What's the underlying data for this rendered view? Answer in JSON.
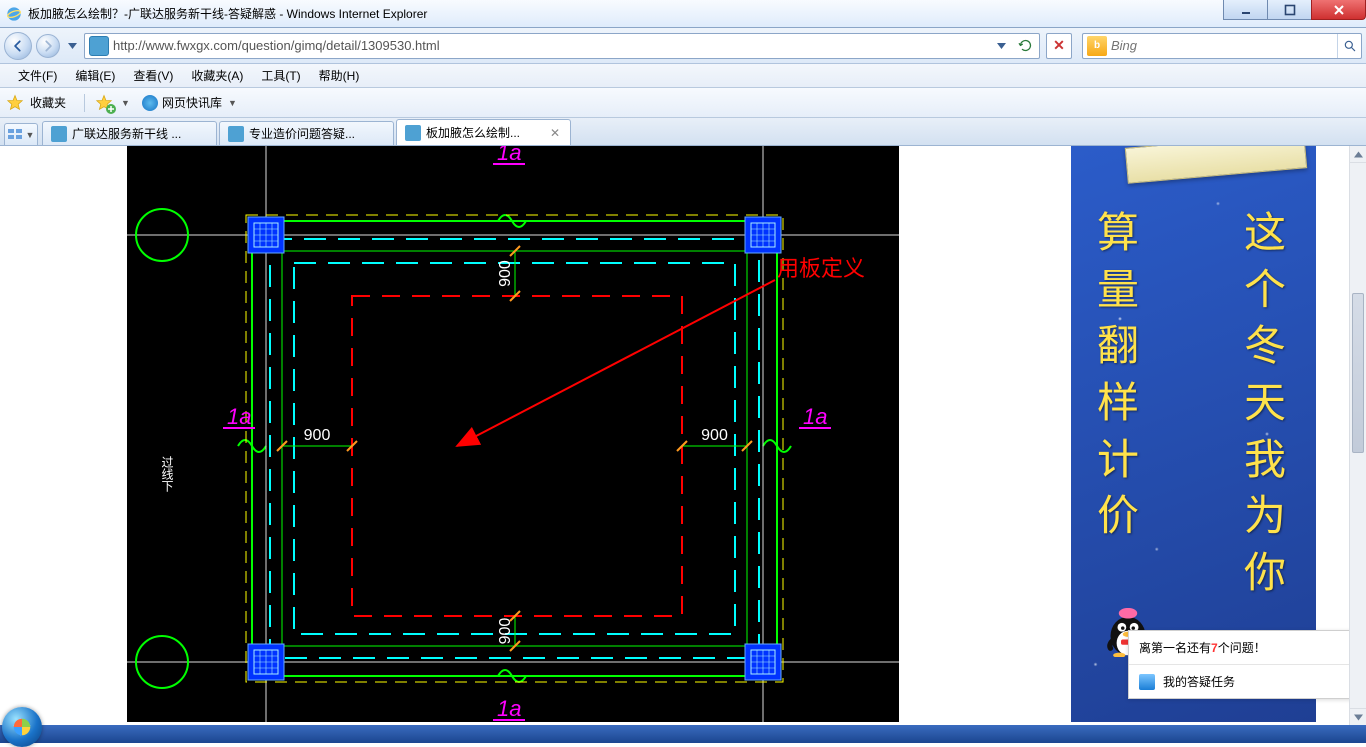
{
  "window": {
    "title": "板加腋怎么绘制？-广联达服务新干线-答疑解惑 - Windows Internet Explorer"
  },
  "nav": {
    "url": "http://www.fwxgx.com/question/gimq/detail/1309530.html",
    "search_placeholder": "Bing"
  },
  "menu": [
    "文件(F)",
    "编辑(E)",
    "查看(V)",
    "收藏夹(A)",
    "工具(T)",
    "帮助(H)"
  ],
  "fav": {
    "label": "收藏夹",
    "item1": "网页快讯库"
  },
  "tabs": [
    {
      "title": "广联达服务新干线 ...",
      "active": false
    },
    {
      "title": "专业造价问题答疑...",
      "active": false
    },
    {
      "title": "板加腋怎么绘制...",
      "active": true
    }
  ],
  "cad": {
    "annotation": "用板定义",
    "dim_label": "900",
    "grid_label": "1a",
    "axis_label": "过线下",
    "colors": {
      "bg": "#000000",
      "frame": "#00ff00",
      "dash_cyan": "#00ffff",
      "dash_red": "#ff0000",
      "dash_yellow": "#ffff00",
      "column": "#0033ff",
      "magenta": "#ff00ff",
      "annot": "#ff0000",
      "dim_text": "#ffffff"
    }
  },
  "banner": {
    "left_col": "算量  翻样  计价",
    "right_col": "这个冬天我为你"
  },
  "popup": {
    "line1_pre": "离第一名还有",
    "line1_num": "7",
    "line1_post": "个问题！",
    "line2": "我的答疑任务"
  }
}
